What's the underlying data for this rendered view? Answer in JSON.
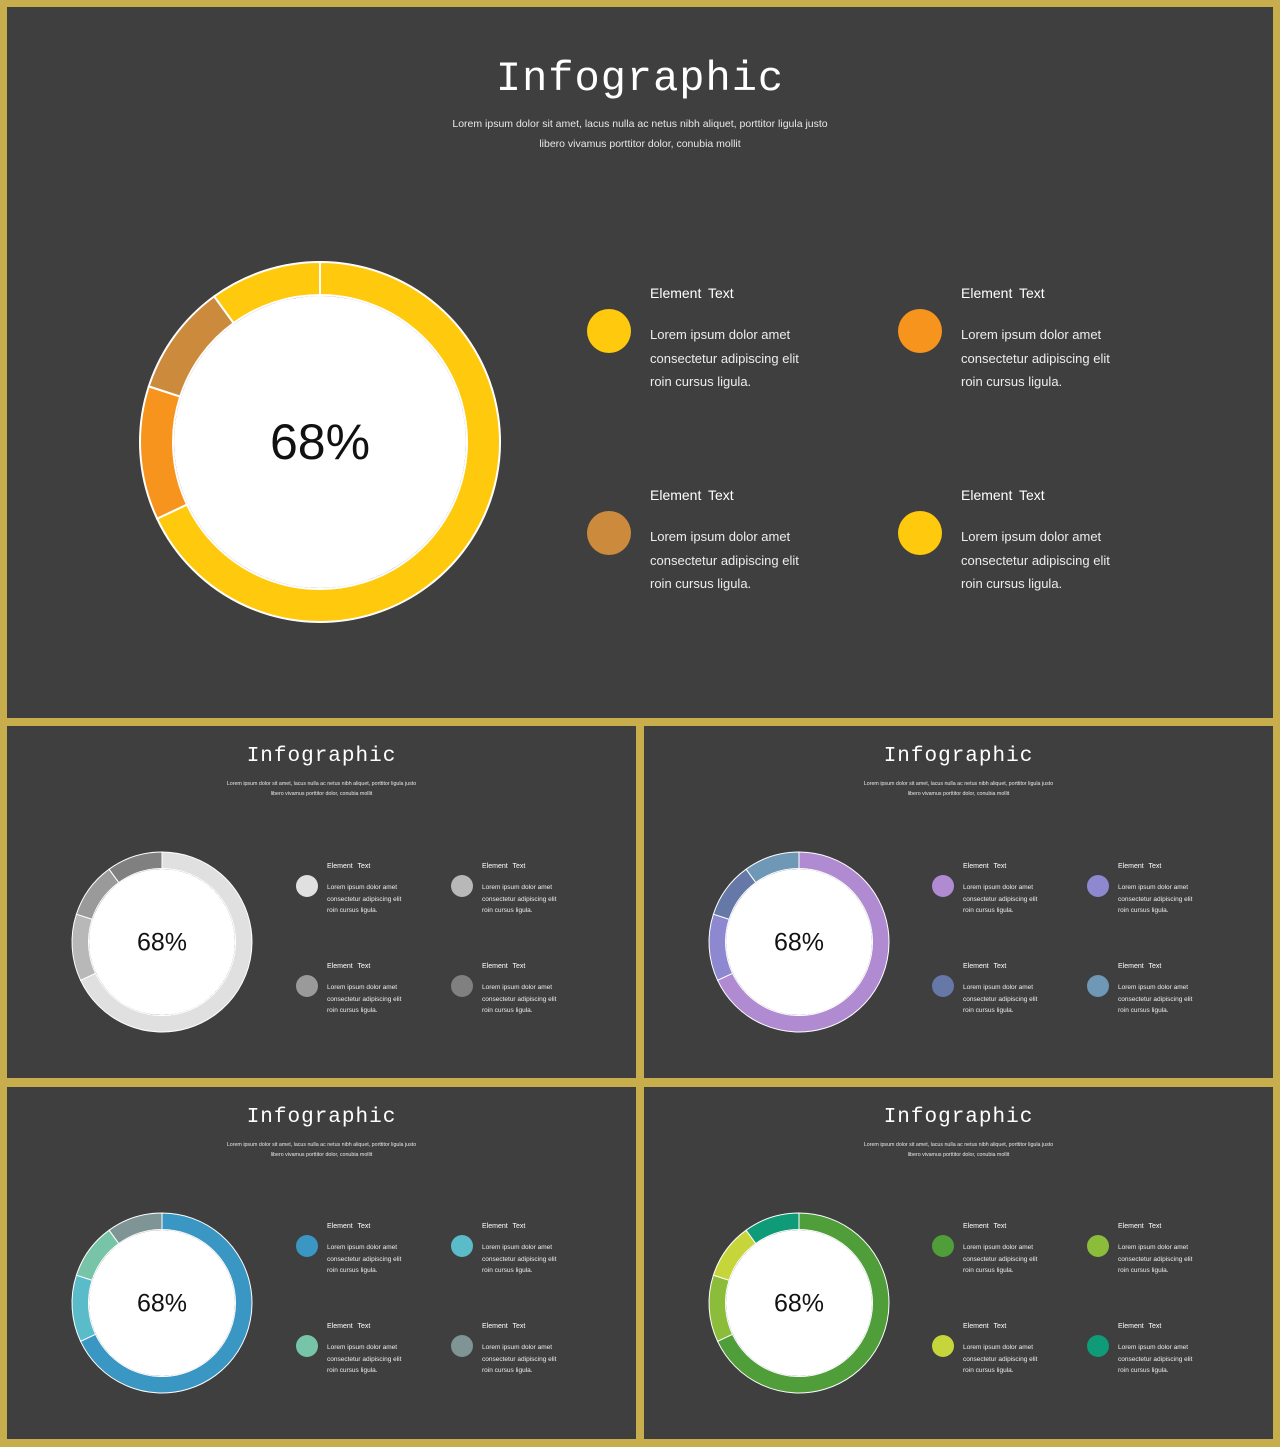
{
  "slides": [
    {
      "id": "main",
      "title": "Infographic",
      "subtitle": "Lorem ipsum dolor sit amet, lacus nulla ac netus nibh aliquet, porttitor ligula justo libero vivamus porttitor dolor, conubia mollit",
      "items": [
        {
          "title": "Element  Text",
          "desc": "Lorem ipsum dolor amet\nconsectetur adipiscing elit\nroin cursus ligula.",
          "color": "#ffc90e"
        },
        {
          "title": "Element  Text",
          "desc": "Lorem ipsum dolor amet\nconsectetur adipiscing elit\nroin cursus ligula.",
          "color": "#f7941d"
        },
        {
          "title": "Element  Text",
          "desc": "Lorem ipsum dolor amet\nconsectetur adipiscing elit\nroin cursus ligula.",
          "color": "#cc8b3c"
        },
        {
          "title": "Element  Text",
          "desc": "Lorem ipsum dolor amet\nconsectetur adipiscing elit\nroin cursus ligula.",
          "color": "#ffc90e"
        }
      ]
    },
    {
      "id": "gray",
      "title": "Infographic",
      "subtitle": "Lorem ipsum dolor sit amet, lacus nulla ac netus nibh aliquet, porttitor ligula justo libero vivamus porttitor dolor, conubia mollit",
      "items": [
        {
          "title": "Element  Text",
          "desc": "Lorem ipsum dolor amet\nconsectetur adipiscing elit\nroin cursus ligula.",
          "color": "#e0e0e0"
        },
        {
          "title": "Element  Text",
          "desc": "Lorem ipsum dolor amet\nconsectetur adipiscing elit\nroin cursus ligula.",
          "color": "#b8b8b8"
        },
        {
          "title": "Element  Text",
          "desc": "Lorem ipsum dolor amet\nconsectetur adipiscing elit\nroin cursus ligula.",
          "color": "#9a9a9a"
        },
        {
          "title": "Element  Text",
          "desc": "Lorem ipsum dolor amet\nconsectetur adipiscing elit\nroin cursus ligula.",
          "color": "#808080"
        }
      ]
    },
    {
      "id": "purple",
      "title": "Infographic",
      "subtitle": "Lorem ipsum dolor sit amet, lacus nulla ac netus nibh aliquet, porttitor ligula justo libero vivamus porttitor dolor, conubia mollit",
      "items": [
        {
          "title": "Element  Text",
          "desc": "Lorem ipsum dolor amet\nconsectetur adipiscing elit\nroin cursus ligula.",
          "color": "#b18bd1"
        },
        {
          "title": "Element  Text",
          "desc": "Lorem ipsum dolor amet\nconsectetur adipiscing elit\nroin cursus ligula.",
          "color": "#8e88d0"
        },
        {
          "title": "Element  Text",
          "desc": "Lorem ipsum dolor amet\nconsectetur adipiscing elit\nroin cursus ligula.",
          "color": "#6678a8"
        },
        {
          "title": "Element  Text",
          "desc": "Lorem ipsum dolor amet\nconsectetur adipiscing elit\nroin cursus ligula.",
          "color": "#6e98b5"
        }
      ]
    },
    {
      "id": "blue",
      "title": "Infographic",
      "subtitle": "Lorem ipsum dolor sit amet, lacus nulla ac netus nibh aliquet, porttitor ligula justo libero vivamus porttitor dolor, conubia mollit",
      "items": [
        {
          "title": "Element  Text",
          "desc": "Lorem ipsum dolor amet\nconsectetur adipiscing elit\nroin cursus ligula.",
          "color": "#3a97c4"
        },
        {
          "title": "Element  Text",
          "desc": "Lorem ipsum dolor amet\nconsectetur adipiscing elit\nroin cursus ligula.",
          "color": "#5bbcc9"
        },
        {
          "title": "Element  Text",
          "desc": "Lorem ipsum dolor amet\nconsectetur adipiscing elit\nroin cursus ligula.",
          "color": "#77c4a8"
        },
        {
          "title": "Element  Text",
          "desc": "Lorem ipsum dolor amet\nconsectetur adipiscing elit\nroin cursus ligula.",
          "color": "#7f9494"
        }
      ]
    },
    {
      "id": "green",
      "title": "Infographic",
      "subtitle": "Lorem ipsum dolor sit amet, lacus nulla ac netus nibh aliquet, porttitor ligula justo libero vivamus porttitor dolor, conubia mollit",
      "items": [
        {
          "title": "Element  Text",
          "desc": "Lorem ipsum dolor amet\nconsectetur adipiscing elit\nroin cursus ligula.",
          "color": "#4f9e3a"
        },
        {
          "title": "Element  Text",
          "desc": "Lorem ipsum dolor amet\nconsectetur adipiscing elit\nroin cursus ligula.",
          "color": "#8cbd3a"
        },
        {
          "title": "Element  Text",
          "desc": "Lorem ipsum dolor amet\nconsectetur adipiscing elit\nroin cursus ligula.",
          "color": "#c6d63a"
        },
        {
          "title": "Element  Text",
          "desc": "Lorem ipsum dolor amet\nconsectetur adipiscing elit\nroin cursus ligula.",
          "color": "#0f9a78"
        }
      ]
    }
  ],
  "chart_data": [
    {
      "type": "pie",
      "variant": "donut",
      "center_label": "68%",
      "values": [
        68,
        12,
        10,
        10
      ],
      "colors": [
        "#ffc90e",
        "#f7941d",
        "#cc8b3c",
        "#ffc90e"
      ]
    },
    {
      "type": "pie",
      "variant": "donut",
      "center_label": "68%",
      "values": [
        68,
        12,
        10,
        10
      ],
      "colors": [
        "#e0e0e0",
        "#b8b8b8",
        "#9a9a9a",
        "#808080"
      ]
    },
    {
      "type": "pie",
      "variant": "donut",
      "center_label": "68%",
      "values": [
        68,
        12,
        10,
        10
      ],
      "colors": [
        "#b18bd1",
        "#8e88d0",
        "#6678a8",
        "#6e98b5"
      ]
    },
    {
      "type": "pie",
      "variant": "donut",
      "center_label": "68%",
      "values": [
        68,
        12,
        10,
        10
      ],
      "colors": [
        "#3a97c4",
        "#5bbcc9",
        "#77c4a8",
        "#7f9494"
      ]
    },
    {
      "type": "pie",
      "variant": "donut",
      "center_label": "68%",
      "values": [
        68,
        12,
        10,
        10
      ],
      "colors": [
        "#4f9e3a",
        "#8cbd3a",
        "#c6d63a",
        "#0f9a78"
      ]
    }
  ]
}
